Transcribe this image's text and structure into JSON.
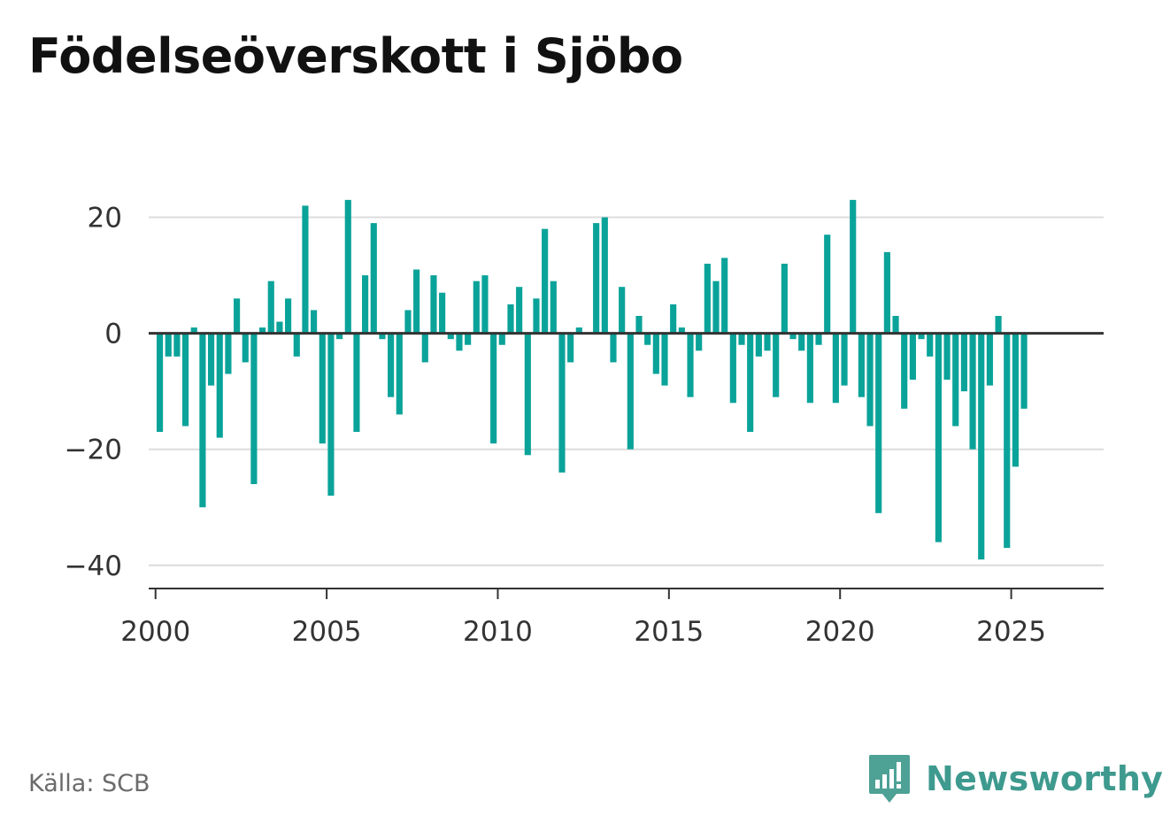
{
  "title": "Födelseöverskott i Sjöbo",
  "source": "Källa: SCB",
  "brand": {
    "name": "Newsworthy",
    "color": "#3e9a8e",
    "icon": "bar-chart-speech-bubble-icon"
  },
  "colors": {
    "bar": "#0aa39a",
    "grid": "#dcdcdc",
    "zero_line": "#333333",
    "axis": "#333333",
    "tick_text": "#333333"
  },
  "chart_data": {
    "type": "bar",
    "title": "Födelseöverskott i Sjöbo",
    "xlabel": "",
    "ylabel": "",
    "ylim": [
      -44,
      30
    ],
    "xlim": [
      1999.8,
      2027.7
    ],
    "grid": true,
    "legend": "none",
    "yticks": [
      20,
      0,
      -20,
      -40
    ],
    "ytick_labels": [
      "20",
      "0",
      "−20",
      "−40"
    ],
    "xticks": [
      2000,
      2005,
      2010,
      2015,
      2020,
      2025
    ],
    "xtick_labels": [
      "2000",
      "2005",
      "2010",
      "2015",
      "2020",
      "2025"
    ],
    "series": [
      {
        "frequency": "quarterly",
        "start": "2000-Q1",
        "values": [
          -17,
          -4,
          -4,
          -16,
          1,
          -30,
          -9,
          -18,
          -7,
          6,
          -5,
          -26,
          1,
          9,
          2,
          6,
          -4,
          22,
          4,
          -19,
          -28,
          -1,
          23,
          -17,
          10,
          19,
          -1,
          -11,
          -14,
          4,
          11,
          -5,
          10,
          7,
          -1,
          -3,
          -2,
          9,
          10,
          -19,
          -2,
          5,
          8,
          -21,
          6,
          18,
          9,
          -24,
          -5,
          1,
          0,
          19,
          20,
          -5,
          8,
          -20,
          3,
          -2,
          -7,
          -9,
          5,
          1,
          -11,
          -3,
          12,
          9,
          13,
          -12,
          -2,
          -17,
          -4,
          -3,
          -11,
          12,
          -1,
          -3,
          -12,
          -2,
          17,
          -12,
          -9,
          23,
          -11,
          -16,
          -31,
          14,
          3,
          -13,
          -8,
          -1,
          -4,
          -36,
          -8,
          -16,
          -10,
          -20,
          -39,
          -9,
          3,
          -37,
          -23,
          -13
        ]
      }
    ]
  }
}
